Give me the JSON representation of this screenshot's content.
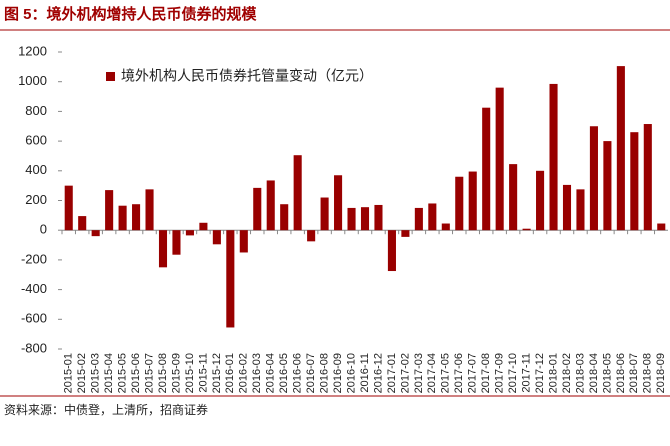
{
  "chart_data": {
    "type": "bar",
    "title": "图 5：境外机构增持人民币债券的规模",
    "source": "资料来源：中债登，上清所，招商证券",
    "categories": [
      "2015-01",
      "2015-02",
      "2015-03",
      "2015-04",
      "2015-05",
      "2015-06",
      "2015-07",
      "2015-08",
      "2015-09",
      "2015-10",
      "2015-11",
      "2015-12",
      "2016-01",
      "2016-02",
      "2016-03",
      "2016-04",
      "2016-05",
      "2016-06",
      "2016-07",
      "2016-08",
      "2016-09",
      "2016-10",
      "2016-11",
      "2016-12",
      "2017-01",
      "2017-02",
      "2017-03",
      "2017-04",
      "2017-05",
      "2017-06",
      "2017-07",
      "2017-08",
      "2017-09",
      "2017-10",
      "2017-11",
      "2017-12",
      "2018-01",
      "2018-02",
      "2018-03",
      "2018-04",
      "2018-05",
      "2018-06",
      "2018-07",
      "2018-08",
      "2018-09"
    ],
    "series": [
      {
        "name": "境外机构人民币债券托管量变动（亿元）",
        "color": "#990000",
        "values": [
          300,
          95,
          -40,
          270,
          165,
          175,
          275,
          -250,
          -165,
          -35,
          50,
          -95,
          -655,
          -150,
          285,
          335,
          175,
          505,
          -75,
          220,
          370,
          150,
          155,
          170,
          -275,
          -45,
          150,
          180,
          45,
          360,
          395,
          825,
          960,
          445,
          10,
          400,
          985,
          305,
          275,
          700,
          600,
          1105,
          660,
          715,
          45
        ]
      }
    ],
    "ylim": [
      -800,
      1200
    ],
    "yticks": [
      -800,
      -600,
      -400,
      -200,
      0,
      200,
      400,
      600,
      800,
      1000,
      1200
    ]
  }
}
